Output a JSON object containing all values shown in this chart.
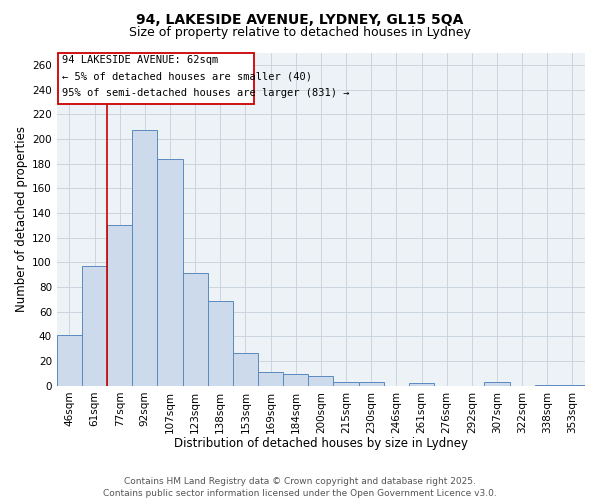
{
  "title_line1": "94, LAKESIDE AVENUE, LYDNEY, GL15 5QA",
  "title_line2": "Size of property relative to detached houses in Lydney",
  "xlabel": "Distribution of detached houses by size in Lydney",
  "ylabel": "Number of detached properties",
  "bar_labels": [
    "46sqm",
    "61sqm",
    "77sqm",
    "92sqm",
    "107sqm",
    "123sqm",
    "138sqm",
    "153sqm",
    "169sqm",
    "184sqm",
    "200sqm",
    "215sqm",
    "230sqm",
    "246sqm",
    "261sqm",
    "276sqm",
    "292sqm",
    "307sqm",
    "322sqm",
    "338sqm",
    "353sqm"
  ],
  "bar_values": [
    41,
    97,
    130,
    207,
    184,
    91,
    69,
    27,
    11,
    10,
    8,
    3,
    3,
    0,
    2,
    0,
    0,
    3,
    0,
    1,
    1
  ],
  "bar_color": "#ccdaeb",
  "bar_edge_color": "#5a8abf",
  "vline_x": 1.5,
  "vline_color": "#cc0000",
  "ann_text_line1": "94 LAKESIDE AVENUE: 62sqm",
  "ann_text_line2": "← 5% of detached houses are smaller (40)",
  "ann_text_line3": "95% of semi-detached houses are larger (831) →",
  "ylim": [
    0,
    270
  ],
  "yticks": [
    0,
    20,
    40,
    60,
    80,
    100,
    120,
    140,
    160,
    180,
    200,
    220,
    240,
    260
  ],
  "grid_color": "#c5d0da",
  "background_color": "#edf2f7",
  "footer_text": "Contains HM Land Registry data © Crown copyright and database right 2025.\nContains public sector information licensed under the Open Government Licence v3.0.",
  "title_fontsize": 10,
  "subtitle_fontsize": 9,
  "axis_label_fontsize": 8.5,
  "tick_fontsize": 7.5,
  "annotation_fontsize": 7.5,
  "footer_fontsize": 6.5
}
